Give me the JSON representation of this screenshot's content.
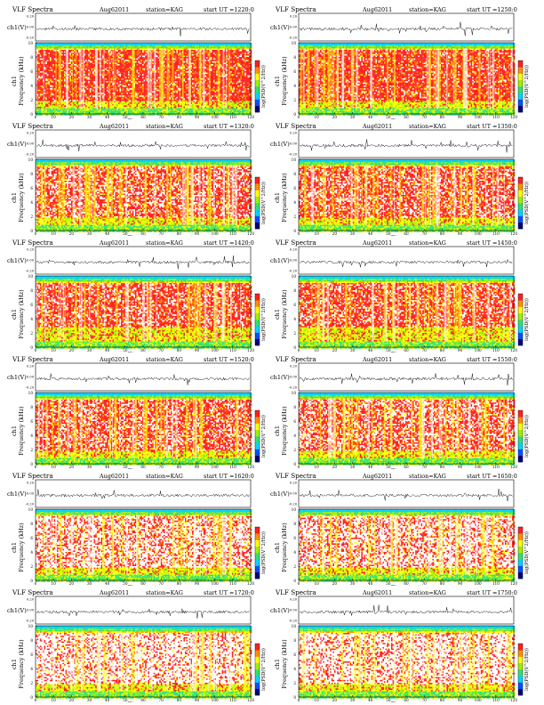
{
  "chart_data": {
    "type": "heatmap",
    "shared": {
      "title": "VLF Spectra",
      "date": "Aug62011",
      "station_text": "station=KAG",
      "start_prefix": "start UT =",
      "top_ylabel": "ch1(V)",
      "top_yticks": [
        "0.20",
        "0.00",
        "-0.20"
      ],
      "ylabel_line1": "ch1",
      "ylabel_line2": "Frequency (kHz)",
      "yticks": [
        0,
        2,
        4,
        6,
        8,
        10
      ],
      "ylim": [
        0,
        10
      ],
      "xlabel": "Time (sec)",
      "xticks": [
        0,
        10,
        20,
        30,
        40,
        50,
        60,
        70,
        80,
        90,
        100,
        110,
        120
      ],
      "xlim": [
        0,
        120
      ],
      "colorbar_label": "log(PSD(V^2/Hz))",
      "colormap": [
        "#00007a",
        "#0050ff",
        "#00d4ff",
        "#30e070",
        "#a0f000",
        "#ffff00",
        "#ff9000",
        "#ff2020",
        "#ffffff"
      ]
    },
    "panels": [
      {
        "start_time": "1220:0",
        "ch2_band_khz": [
          2,
          9
        ],
        "white_fraction": 0.1
      },
      {
        "start_time": "1250:0",
        "ch2_band_khz": [
          2,
          9
        ],
        "white_fraction": 0.12
      },
      {
        "start_time": "1320:0",
        "ch2_band_khz": [
          2,
          9
        ],
        "white_fraction": 0.3
      },
      {
        "start_time": "1350:0",
        "ch2_band_khz": [
          2,
          9
        ],
        "white_fraction": 0.28
      },
      {
        "start_time": "1420:0",
        "ch2_band_khz": [
          3,
          9
        ],
        "white_fraction": 0.25
      },
      {
        "start_time": "1450:0",
        "ch2_band_khz": [
          3,
          9
        ],
        "white_fraction": 0.25
      },
      {
        "start_time": "1520:0",
        "ch2_band_khz": [
          2,
          9
        ],
        "white_fraction": 0.3
      },
      {
        "start_time": "1550:0",
        "ch2_band_khz": [
          2,
          9
        ],
        "white_fraction": 0.35
      },
      {
        "start_time": "1620:0",
        "ch2_band_khz": [
          2,
          9
        ],
        "white_fraction": 0.55
      },
      {
        "start_time": "1650:0",
        "ch2_band_khz": [
          2,
          9
        ],
        "white_fraction": 0.55
      },
      {
        "start_time": "1720:0",
        "ch2_band_khz": [
          2,
          9
        ],
        "white_fraction": 0.65
      },
      {
        "start_time": "1750:0",
        "ch2_band_khz": [
          2,
          9
        ],
        "white_fraction": 0.65
      }
    ]
  }
}
